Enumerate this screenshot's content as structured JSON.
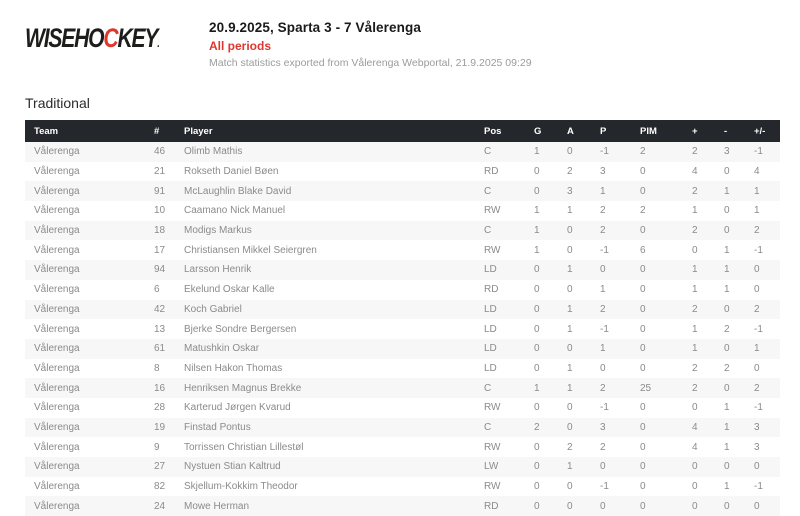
{
  "logo": {
    "part1": "WISEHO",
    "accent_letter": "C",
    "part2": "KEY",
    "registered_mark": "."
  },
  "header": {
    "title": "20.9.2025, Sparta 3 - 7 Vålerenga",
    "subtitle": "All periods",
    "export_note": "Match statistics exported from Vålerenga Webportal, 21.9.2025 09:29"
  },
  "section": {
    "title": "Traditional"
  },
  "colors": {
    "accent_red": "#e0362c",
    "table_header_bg": "#24272b",
    "row_alt_bg": "#f7f7f7",
    "cell_text": "#8b8b8b"
  },
  "table": {
    "columns": [
      "Team",
      "#",
      "Player",
      "Pos",
      "G",
      "A",
      "P",
      "PIM",
      "+",
      "-",
      "+/-"
    ],
    "rows": [
      {
        "team": "Vålerenga",
        "number": "46",
        "player": "Olimb Mathis",
        "pos": "C",
        "g": "1",
        "a": "0",
        "p": "-1",
        "pim": "2",
        "plus": "2",
        "minus": "3",
        "plus_minus": "-1"
      },
      {
        "team": "Vålerenga",
        "number": "21",
        "player": "Rokseth Daniel Bøen",
        "pos": "RD",
        "g": "0",
        "a": "2",
        "p": "3",
        "pim": "0",
        "plus": "4",
        "minus": "0",
        "plus_minus": "4"
      },
      {
        "team": "Vålerenga",
        "number": "91",
        "player": "McLaughlin Blake David",
        "pos": "C",
        "g": "0",
        "a": "3",
        "p": "1",
        "pim": "0",
        "plus": "2",
        "minus": "1",
        "plus_minus": "1"
      },
      {
        "team": "Vålerenga",
        "number": "10",
        "player": "Caamano Nick Manuel",
        "pos": "RW",
        "g": "1",
        "a": "1",
        "p": "2",
        "pim": "2",
        "plus": "1",
        "minus": "0",
        "plus_minus": "1"
      },
      {
        "team": "Vålerenga",
        "number": "18",
        "player": "Modigs Markus",
        "pos": "C",
        "g": "1",
        "a": "0",
        "p": "2",
        "pim": "0",
        "plus": "2",
        "minus": "0",
        "plus_minus": "2"
      },
      {
        "team": "Vålerenga",
        "number": "17",
        "player": "Christiansen Mikkel Seiergren",
        "pos": "RW",
        "g": "1",
        "a": "0",
        "p": "-1",
        "pim": "6",
        "plus": "0",
        "minus": "1",
        "plus_minus": "-1"
      },
      {
        "team": "Vålerenga",
        "number": "94",
        "player": "Larsson Henrik",
        "pos": "LD",
        "g": "0",
        "a": "1",
        "p": "0",
        "pim": "0",
        "plus": "1",
        "minus": "1",
        "plus_minus": "0"
      },
      {
        "team": "Vålerenga",
        "number": "6",
        "player": "Ekelund Oskar Kalle",
        "pos": "RD",
        "g": "0",
        "a": "0",
        "p": "1",
        "pim": "0",
        "plus": "1",
        "minus": "1",
        "plus_minus": "0"
      },
      {
        "team": "Vålerenga",
        "number": "42",
        "player": "Koch Gabriel",
        "pos": "LD",
        "g": "0",
        "a": "1",
        "p": "2",
        "pim": "0",
        "plus": "2",
        "minus": "0",
        "plus_minus": "2"
      },
      {
        "team": "Vålerenga",
        "number": "13",
        "player": "Bjerke Sondre Bergersen",
        "pos": "LD",
        "g": "0",
        "a": "1",
        "p": "-1",
        "pim": "0",
        "plus": "1",
        "minus": "2",
        "plus_minus": "-1"
      },
      {
        "team": "Vålerenga",
        "number": "61",
        "player": "Matushkin Oskar",
        "pos": "LD",
        "g": "0",
        "a": "0",
        "p": "1",
        "pim": "0",
        "plus": "1",
        "minus": "0",
        "plus_minus": "1"
      },
      {
        "team": "Vålerenga",
        "number": "8",
        "player": "Nilsen Hakon Thomas",
        "pos": "LD",
        "g": "0",
        "a": "1",
        "p": "0",
        "pim": "0",
        "plus": "2",
        "minus": "2",
        "plus_minus": "0"
      },
      {
        "team": "Vålerenga",
        "number": "16",
        "player": "Henriksen Magnus Brekke",
        "pos": "C",
        "g": "1",
        "a": "1",
        "p": "2",
        "pim": "25",
        "plus": "2",
        "minus": "0",
        "plus_minus": "2"
      },
      {
        "team": "Vålerenga",
        "number": "28",
        "player": "Karterud Jørgen Kvarud",
        "pos": "RW",
        "g": "0",
        "a": "0",
        "p": "-1",
        "pim": "0",
        "plus": "0",
        "minus": "1",
        "plus_minus": "-1"
      },
      {
        "team": "Vålerenga",
        "number": "19",
        "player": "Finstad Pontus",
        "pos": "C",
        "g": "2",
        "a": "0",
        "p": "3",
        "pim": "0",
        "plus": "4",
        "minus": "1",
        "plus_minus": "3"
      },
      {
        "team": "Vålerenga",
        "number": "9",
        "player": "Torrissen Christian Lillestøl",
        "pos": "RW",
        "g": "0",
        "a": "2",
        "p": "2",
        "pim": "0",
        "plus": "4",
        "minus": "1",
        "plus_minus": "3"
      },
      {
        "team": "Vålerenga",
        "number": "27",
        "player": "Nystuen Stian Kaltrud",
        "pos": "LW",
        "g": "0",
        "a": "1",
        "p": "0",
        "pim": "0",
        "plus": "0",
        "minus": "0",
        "plus_minus": "0"
      },
      {
        "team": "Vålerenga",
        "number": "82",
        "player": "Skjellum-Kokkim Theodor",
        "pos": "RW",
        "g": "0",
        "a": "0",
        "p": "-1",
        "pim": "0",
        "plus": "0",
        "minus": "1",
        "plus_minus": "-1"
      },
      {
        "team": "Vålerenga",
        "number": "24",
        "player": "Mowe Herman",
        "pos": "RD",
        "g": "0",
        "a": "0",
        "p": "0",
        "pim": "0",
        "plus": "0",
        "minus": "0",
        "plus_minus": "0"
      }
    ]
  }
}
